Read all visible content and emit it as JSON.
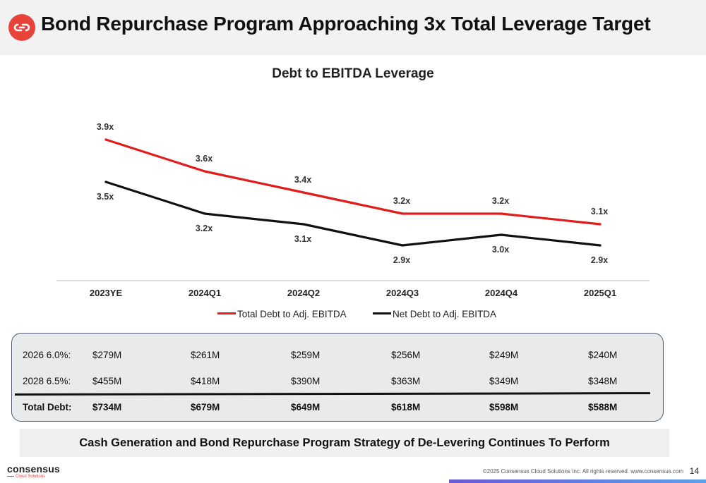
{
  "header": {
    "title": "Bond Repurchase Program Approaching 3x Total Leverage Target",
    "logo_icon": "infinity-link-icon",
    "logo_color": "#e8433a"
  },
  "chart_data": {
    "type": "line",
    "title": "Debt to EBITDA Leverage",
    "categories": [
      "2023YE",
      "2024Q1",
      "2024Q2",
      "2024Q3",
      "2024Q4",
      "2025Q1"
    ],
    "series": [
      {
        "name": "Total Debt to Adj. EBITDA",
        "color": "#e31b1b",
        "values": [
          3.9,
          3.6,
          3.4,
          3.2,
          3.2,
          3.1
        ],
        "labels": [
          "3.9x",
          "3.6x",
          "3.4x",
          "3.2x",
          "3.2x",
          "3.1x"
        ]
      },
      {
        "name": "Net Debt to Adj. EBITDA",
        "color": "#111111",
        "values": [
          3.5,
          3.2,
          3.1,
          2.9,
          3.0,
          2.9
        ],
        "labels": [
          "3.5x",
          "3.2x",
          "3.1x",
          "2.9x",
          "3.0x",
          "2.9x"
        ]
      }
    ],
    "legend_position": "bottom",
    "grid": false,
    "y_axis_visible": false
  },
  "debt_table": {
    "rows": [
      {
        "label": "2026 6.0%:",
        "values": [
          "$279M",
          "$261M",
          "$259M",
          "$256M",
          "$249M",
          "$240M"
        ]
      },
      {
        "label": "2028 6.5%:",
        "values": [
          "$455M",
          "$418M",
          "$390M",
          "$363M",
          "$349M",
          "$348M"
        ]
      },
      {
        "label": "Total Debt:",
        "values": [
          "$734M",
          "$679M",
          "$649M",
          "$618M",
          "$598M",
          "$588M"
        ]
      }
    ]
  },
  "banner": {
    "text": "Cash Generation and Bond Repurchase Program Strategy of De-Levering Continues To Perform"
  },
  "footer": {
    "brand": "consensus",
    "brand_sub": "Cloud Solutions",
    "copyright": "©2025 Consensus Cloud Solutions Inc. All rights reserved. www.consensus.com",
    "page_number": "14"
  }
}
